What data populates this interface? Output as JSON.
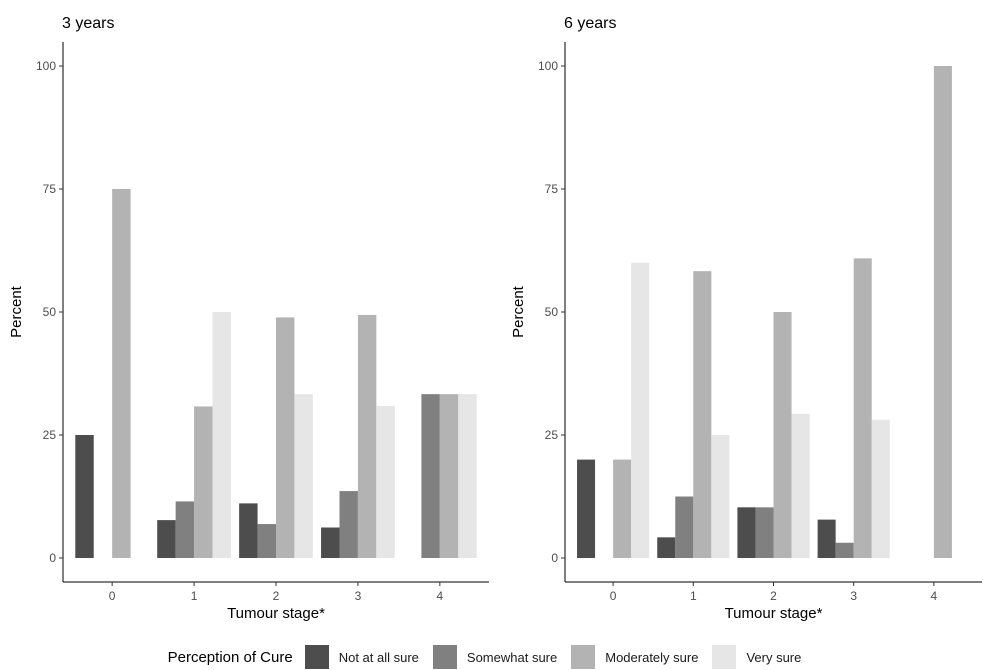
{
  "chart_data": [
    {
      "type": "bar",
      "title": "3 years",
      "xlabel": "Tumour stage*",
      "ylabel": "Percent",
      "categories": [
        "0",
        "1",
        "2",
        "3",
        "4"
      ],
      "ylim": [
        0,
        100
      ],
      "yticks": [
        0,
        25,
        50,
        75,
        100
      ],
      "series": [
        {
          "name": "Not at all sure",
          "values": [
            25,
            7.7,
            11.1,
            6.2,
            null
          ]
        },
        {
          "name": "Somewhat sure",
          "values": [
            null,
            11.5,
            6.9,
            13.6,
            33.3
          ]
        },
        {
          "name": "Moderately sure",
          "values": [
            75,
            30.8,
            48.9,
            49.4,
            33.3
          ]
        },
        {
          "name": "Very sure",
          "values": [
            null,
            50,
            33.3,
            30.9,
            33.3
          ]
        }
      ]
    },
    {
      "type": "bar",
      "title": "6 years",
      "xlabel": "Tumour stage*",
      "ylabel": "Percent",
      "categories": [
        "0",
        "1",
        "2",
        "3",
        "4"
      ],
      "ylim": [
        0,
        100
      ],
      "yticks": [
        0,
        25,
        50,
        75,
        100
      ],
      "series": [
        {
          "name": "Not at all sure",
          "values": [
            20,
            4.2,
            10.3,
            7.8,
            null
          ]
        },
        {
          "name": "Somewhat sure",
          "values": [
            null,
            12.5,
            10.3,
            3.1,
            null
          ]
        },
        {
          "name": "Moderately sure",
          "values": [
            20,
            58.3,
            50,
            60.9,
            100
          ]
        },
        {
          "name": "Very sure",
          "values": [
            60,
            25,
            29.3,
            28.1,
            null
          ]
        }
      ]
    }
  ],
  "legend": {
    "title": "Perception of Cure",
    "items": [
      {
        "label": "Not at all sure",
        "color": "#4d4d4d"
      },
      {
        "label": "Somewhat sure",
        "color": "#808080"
      },
      {
        "label": "Moderately sure",
        "color": "#b3b3b3"
      },
      {
        "label": "Very sure",
        "color": "#e6e6e6"
      }
    ]
  },
  "colors": [
    "#4d4d4d",
    "#808080",
    "#b3b3b3",
    "#e6e6e6"
  ]
}
